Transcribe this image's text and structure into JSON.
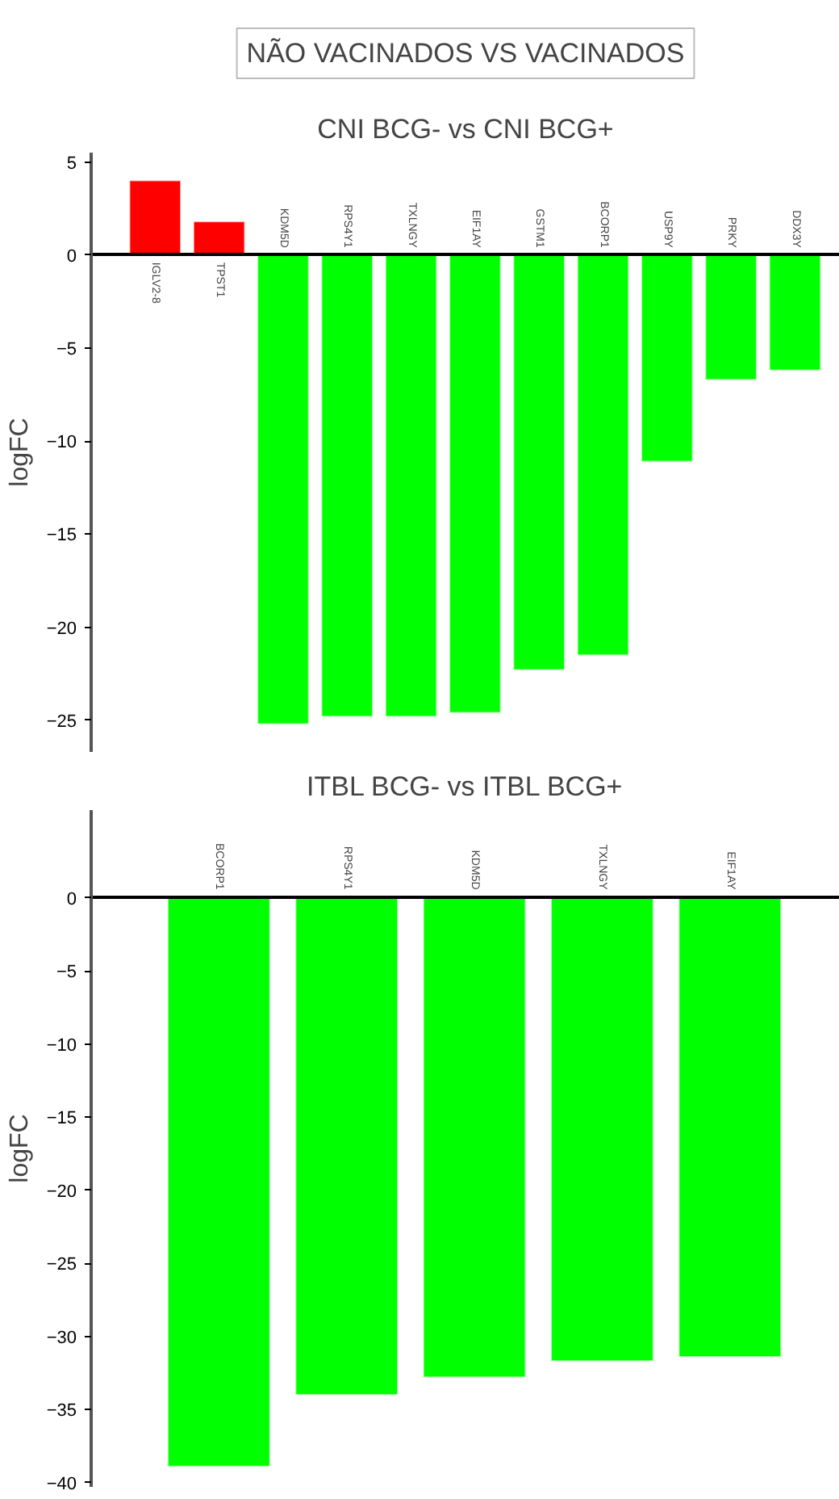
{
  "chart_data": [
    {
      "type": "bar",
      "title": "NÃO VACINADOS VS VACINADOS",
      "subtitle": "CNI BCG- vs CNI BCG+",
      "ylabel": "logFC",
      "categories": [
        "IGLV2-8",
        "TPST1",
        "KDM5D",
        "RPS4Y1",
        "TXLNGY",
        "EIF1AY",
        "GSTM1",
        "BCORP1",
        "USP9Y",
        "PRKY",
        "DDX3Y"
      ],
      "values": [
        4.0,
        1.8,
        -25.2,
        -24.8,
        -24.8,
        -24.6,
        -22.3,
        -21.5,
        -11.1,
        -6.7,
        -6.2
      ],
      "colors": [
        "#ff0000",
        "#ff0000",
        "#00ff00",
        "#00ff00",
        "#00ff00",
        "#00ff00",
        "#00ff00",
        "#00ff00",
        "#00ff00",
        "#00ff00",
        "#00ff00"
      ],
      "ylim": [
        -26.7,
        5.5
      ],
      "yticks": [
        5,
        0,
        -5,
        -10,
        -15,
        -20,
        -25
      ],
      "grid": false
    },
    {
      "type": "bar",
      "title": "ITBL BCG- vs ITBL BCG+",
      "ylabel": "logFC",
      "categories": [
        "BCORP1",
        "RPS4Y1",
        "KDM5D",
        "TXLNGY",
        "EIF1AY"
      ],
      "values": [
        -38.9,
        -34.0,
        -32.8,
        -31.7,
        -31.4
      ],
      "colors": [
        "#00ff00",
        "#00ff00",
        "#00ff00",
        "#00ff00",
        "#00ff00"
      ],
      "ylim": [
        -40.3,
        6
      ],
      "yticks": [
        0,
        -5,
        -10,
        -15,
        -20,
        -25,
        -30,
        -35,
        -40
      ],
      "grid": false
    }
  ]
}
